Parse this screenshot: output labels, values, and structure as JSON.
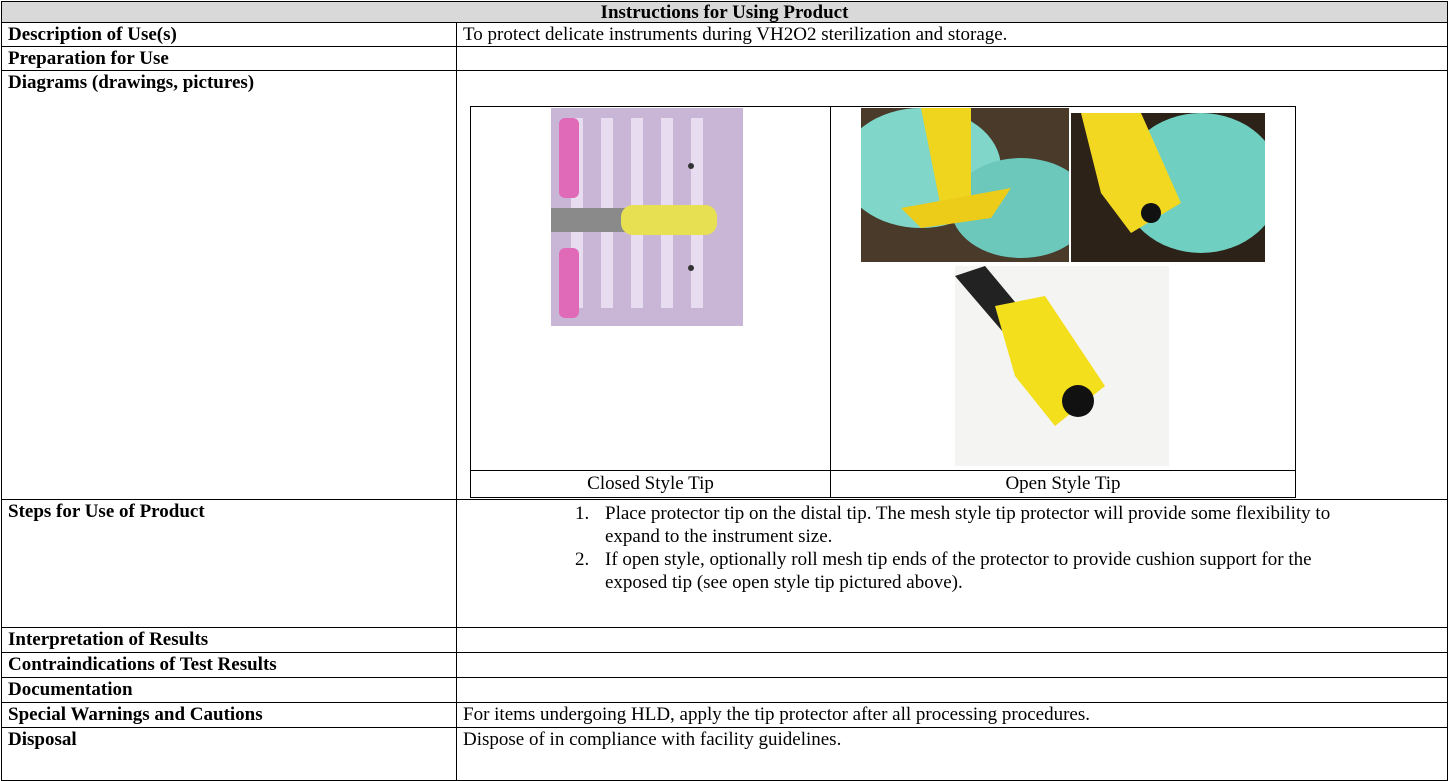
{
  "header": {
    "title": "Instructions for Using Product"
  },
  "rows": [
    {
      "label": "Description of Use(s)",
      "content": "To protect delicate instruments during VH2O2 sterilization and storage."
    },
    {
      "label": "Preparation for Use"
    },
    {
      "label": "Diagrams (drawings, pictures)",
      "captions": [
        "Closed Style Tip",
        "Open Style Tip"
      ]
    },
    {
      "label": "Steps for Use of Product",
      "steps": [
        {
          "number": "1.",
          "text": "Place protector tip on the distal tip. The mesh style tip protector will provide some flexibility to expand to the instrument size."
        },
        {
          "number": "2.",
          "text": "If open style, optionally roll mesh tip ends of the protector to provide cushion support for the exposed tip (see open style tip pictured above)."
        }
      ]
    },
    {
      "label": "Interpretation of Results"
    },
    {
      "label": "Contraindications of Test Results"
    },
    {
      "label": "Documentation"
    },
    {
      "label": "Special Warnings and Cautions",
      "content": "For items undergoing HLD, apply the tip protector after all processing procedures."
    },
    {
      "label": "Disposal",
      "content": "Dispose of in compliance with facility guidelines."
    }
  ]
}
